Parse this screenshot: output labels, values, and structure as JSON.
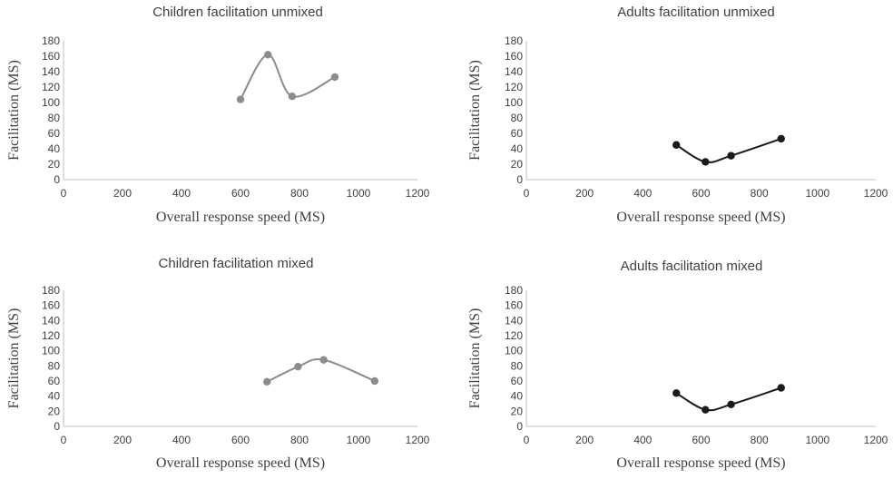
{
  "chart_data": [
    {
      "type": "scatter",
      "title": "Children facilitation unmixed",
      "xlabel": "Overall response speed (MS)",
      "ylabel": "Facilitation (MS)",
      "xlim": [
        0,
        1200
      ],
      "ylim": [
        0,
        180
      ],
      "xticks": [
        "0",
        "200",
        "400",
        "600",
        "800",
        "1000",
        "1200"
      ],
      "yticks": [
        "0",
        "20",
        "40",
        "60",
        "80",
        "100",
        "120",
        "140",
        "160",
        "180"
      ],
      "smooth": true,
      "grid": false,
      "color": "#8c8c8c",
      "series": [
        {
          "x": [
            600,
            693,
            775,
            920
          ],
          "y": [
            104,
            162,
            108,
            133
          ]
        }
      ]
    },
    {
      "type": "scatter",
      "title": "Adults facilitation unmixed",
      "xlabel": "Overall response speed (MS)",
      "ylabel": "Facilitation (MS)",
      "xlim": [
        0,
        1200
      ],
      "ylim": [
        0,
        180
      ],
      "xticks": [
        "0",
        "200",
        "400",
        "600",
        "800",
        "1000",
        "1200"
      ],
      "yticks": [
        "0",
        "20",
        "40",
        "60",
        "80",
        "100",
        "120",
        "140",
        "160",
        "180"
      ],
      "smooth": true,
      "grid": false,
      "color": "#1a1a1a",
      "series": [
        {
          "x": [
            515,
            615,
            703,
            875
          ],
          "y": [
            45,
            23,
            31,
            53
          ]
        }
      ]
    },
    {
      "type": "scatter",
      "title": "Children facilitation mixed",
      "xlabel": "Overall response speed (MS)",
      "ylabel": "Facilitation (MS)",
      "xlim": [
        0,
        1200
      ],
      "ylim": [
        0,
        180
      ],
      "xticks": [
        "0",
        "200",
        "400",
        "600",
        "800",
        "1000",
        "1200"
      ],
      "yticks": [
        "0",
        "20",
        "40",
        "60",
        "80",
        "100",
        "120",
        "140",
        "160",
        "180"
      ],
      "smooth": true,
      "grid": false,
      "color": "#8c8c8c",
      "series": [
        {
          "x": [
            690,
            795,
            882,
            1055
          ],
          "y": [
            59,
            79,
            88,
            60
          ]
        }
      ]
    },
    {
      "type": "scatter",
      "title": "Adults facilitation mixed",
      "xlabel": "Overall response speed (MS)",
      "ylabel": "Facilitation (MS)",
      "xlim": [
        0,
        1200
      ],
      "ylim": [
        0,
        180
      ],
      "xticks": [
        "0",
        "200",
        "400",
        "600",
        "800",
        "1000",
        "1200"
      ],
      "yticks": [
        "0",
        "20",
        "40",
        "60",
        "80",
        "100",
        "120",
        "140",
        "160",
        "180"
      ],
      "smooth": true,
      "grid": false,
      "color": "#1a1a1a",
      "series": [
        {
          "x": [
            515,
            615,
            703,
            875
          ],
          "y": [
            44,
            22,
            29,
            51
          ]
        }
      ]
    }
  ]
}
